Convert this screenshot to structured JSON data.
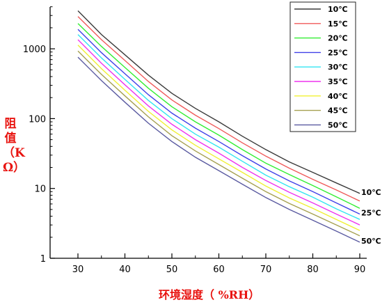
{
  "chart_data": {
    "type": "line",
    "xlabel": "环境湿度（ %RH）",
    "ylabel": "阻值（KΩ）",
    "y_scale": "log",
    "xlim": [
      30,
      90
    ],
    "ylim": [
      1,
      4000
    ],
    "x_ticks": [
      "30",
      "40",
      "50",
      "60",
      "70",
      "80",
      "90"
    ],
    "y_ticks": [
      {
        "value": 1,
        "label": "1"
      },
      {
        "value": 10,
        "label": "10"
      },
      {
        "value": 100,
        "label": "100"
      },
      {
        "value": 1000,
        "label": "1000"
      }
    ],
    "x": [
      30,
      35,
      40,
      45,
      50,
      55,
      60,
      65,
      70,
      75,
      80,
      85,
      90
    ],
    "grid": false,
    "legend_position": "top-right",
    "series": [
      {
        "name": "10℃",
        "color": "#3a3a3a",
        "values": [
          3500,
          1600,
          820,
          420,
          230,
          140,
          90,
          56,
          36,
          24,
          17,
          12,
          8.5
        ]
      },
      {
        "name": "15℃",
        "color": "#f05a5a",
        "values": [
          2900,
          1350,
          680,
          340,
          185,
          112,
          72,
          45,
          29,
          19.5,
          13.5,
          9.5,
          6.6
        ]
      },
      {
        "name": "20℃",
        "color": "#33ee33",
        "values": [
          2300,
          1080,
          540,
          272,
          148,
          90,
          58,
          36,
          23,
          15.8,
          11,
          7.6,
          5.2
        ]
      },
      {
        "name": "25℃",
        "color": "#4040e8",
        "values": [
          1900,
          880,
          440,
          220,
          120,
          73,
          47,
          29.5,
          19,
          12.8,
          9,
          6.2,
          4.3
        ]
      },
      {
        "name": "30℃",
        "color": "#33e5f2",
        "values": [
          1600,
          740,
          365,
          182,
          100,
          60,
          39,
          24.5,
          15.5,
          10.6,
          7.5,
          5.1,
          3.6
        ]
      },
      {
        "name": "35℃",
        "color": "#ee33ee",
        "values": [
          1350,
          620,
          305,
          152,
          83,
          50,
          32,
          20,
          13,
          8.8,
          6.2,
          4.3,
          3.0
        ]
      },
      {
        "name": "40℃",
        "color": "#f0f033",
        "values": [
          1130,
          520,
          255,
          127,
          69,
          41.5,
          26.5,
          17,
          10.8,
          7.3,
          5.2,
          3.6,
          2.5
        ]
      },
      {
        "name": "45℃",
        "color": "#a5a050",
        "values": [
          930,
          430,
          212,
          106,
          57,
          34.5,
          22,
          14,
          9,
          6.1,
          4.3,
          3.0,
          2.1
        ]
      },
      {
        "name": "50℃",
        "color": "#5a5aa0",
        "values": [
          760,
          350,
          172,
          86,
          47,
          28,
          18,
          11.5,
          7.4,
          5.0,
          3.5,
          2.45,
          1.7
        ]
      }
    ],
    "end_labels": [
      {
        "series": "10℃",
        "text": "10℃"
      },
      {
        "series": "25℃",
        "text": "25℃"
      },
      {
        "series": "50℃",
        "text": "50℃"
      }
    ]
  }
}
